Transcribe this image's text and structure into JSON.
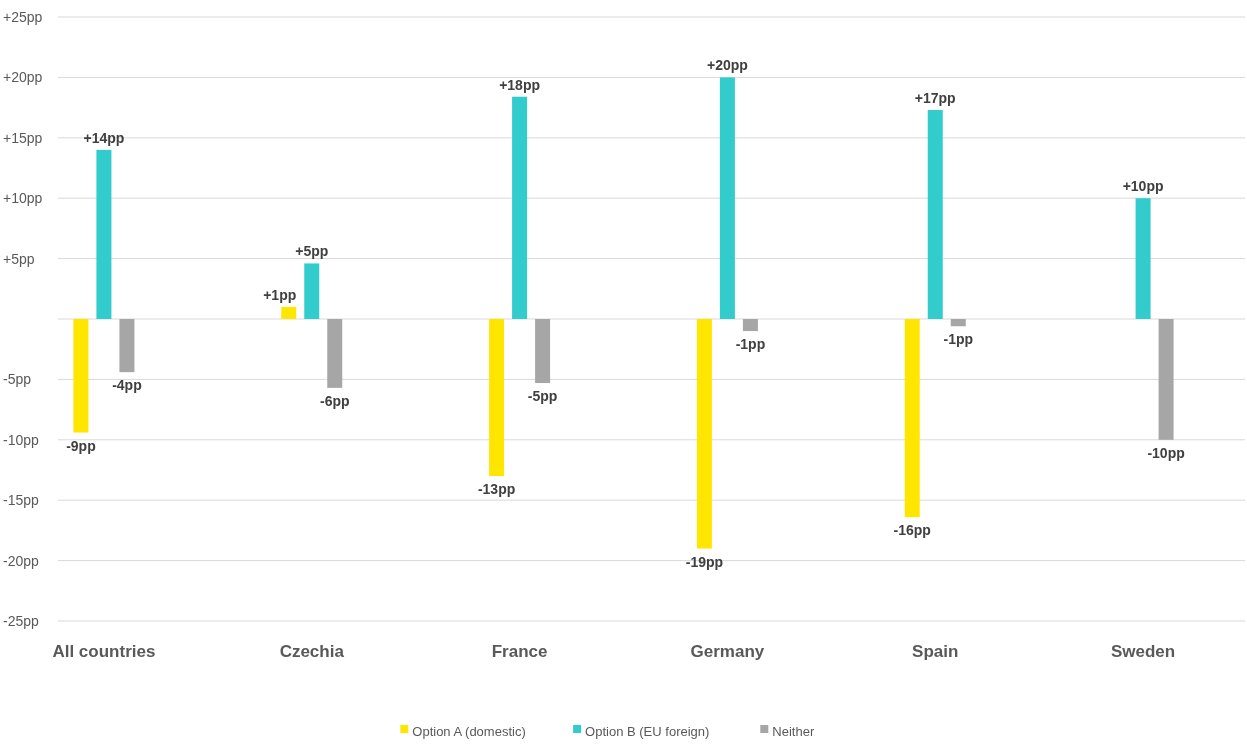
{
  "chart_data": {
    "type": "bar",
    "categories": [
      "All countries",
      "Czechia",
      "France",
      "Germany",
      "Spain",
      "Sweden"
    ],
    "series": [
      {
        "name": "Option A (domestic)",
        "color": "#ffe600",
        "values": [
          -9.4,
          1,
          -13,
          -19,
          -16.4,
          null
        ],
        "value_labels": [
          "-9pp",
          "+1pp",
          "-13pp",
          "-19pp",
          "-16pp",
          null
        ]
      },
      {
        "name": "Option B (EU foreign)",
        "color": "#33cccc",
        "values": [
          14,
          4.6,
          18.4,
          20,
          17.3,
          10
        ],
        "value_labels": [
          "+14pp",
          "+5pp",
          "+18pp",
          "+20pp",
          "+17pp",
          "+10pp"
        ]
      },
      {
        "name": "Neither",
        "color": "#a6a6a6",
        "values": [
          -4.4,
          -5.7,
          -5.3,
          -1,
          -0.6,
          -10
        ],
        "value_labels": [
          "-4pp",
          "-6pp",
          "-5pp",
          "-1pp",
          "-1pp",
          "-10pp"
        ]
      }
    ],
    "ylim": [
      -25,
      25
    ],
    "yticks": [
      {
        "value": -25,
        "label": "-25pp"
      },
      {
        "value": -20,
        "label": "-20pp"
      },
      {
        "value": -15,
        "label": "-15pp"
      },
      {
        "value": -10,
        "label": "-10pp"
      },
      {
        "value": -5,
        "label": "-5pp"
      },
      {
        "value": 0,
        "label": null
      },
      {
        "value": 5,
        "label": "+5pp"
      },
      {
        "value": 10,
        "label": "+10pp"
      },
      {
        "value": 15,
        "label": "+15pp"
      },
      {
        "value": 20,
        "label": "+20pp"
      },
      {
        "value": 25,
        "label": "+25pp"
      }
    ],
    "grid": "y",
    "legend": "bottom"
  }
}
